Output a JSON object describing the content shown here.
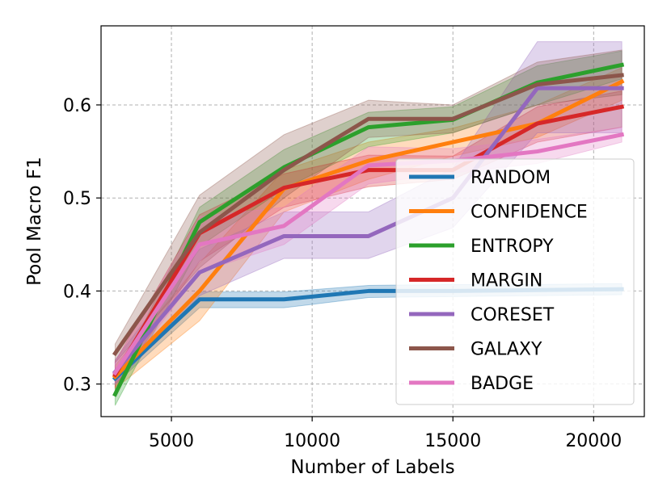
{
  "chart_data": {
    "type": "line",
    "title": "",
    "xlabel": "Number of Labels",
    "ylabel": "Pool Macro F1",
    "xlim": [
      2500,
      21800
    ],
    "ylim": [
      0.265,
      0.685
    ],
    "xticks": [
      5000,
      10000,
      15000,
      20000
    ],
    "yticks": [
      0.3,
      0.4,
      0.5,
      0.6
    ],
    "xtick_labels": [
      "5000",
      "10000",
      "15000",
      "20000"
    ],
    "ytick_labels": [
      "0.3",
      "0.4",
      "0.5",
      "0.6"
    ],
    "grid": true,
    "legend_position": "lower-right",
    "x": [
      3000,
      6000,
      9000,
      12000,
      15000,
      18000,
      21000
    ],
    "series": [
      {
        "name": "RANDOM",
        "color": "#1f77b4",
        "values": [
          0.306,
          0.391,
          0.391,
          0.4,
          0.4,
          0.401,
          0.402
        ],
        "lower": [
          0.3,
          0.382,
          0.382,
          0.393,
          0.394,
          0.395,
          0.396
        ],
        "upper": [
          0.312,
          0.399,
          0.399,
          0.406,
          0.407,
          0.407,
          0.408
        ]
      },
      {
        "name": "CONFIDENCE",
        "color": "#ff7f0e",
        "values": [
          0.308,
          0.4,
          0.51,
          0.54,
          0.56,
          0.58,
          0.625
        ],
        "lower": [
          0.295,
          0.368,
          0.485,
          0.52,
          0.545,
          0.565,
          0.605
        ],
        "upper": [
          0.32,
          0.43,
          0.53,
          0.56,
          0.575,
          0.6,
          0.64
        ]
      },
      {
        "name": "ENTROPY",
        "color": "#2ca02c",
        "values": [
          0.289,
          0.474,
          0.533,
          0.576,
          0.584,
          0.624,
          0.643
        ],
        "lower": [
          0.277,
          0.448,
          0.51,
          0.555,
          0.57,
          0.6,
          0.628
        ],
        "upper": [
          0.301,
          0.49,
          0.552,
          0.592,
          0.598,
          0.642,
          0.658
        ]
      },
      {
        "name": "MARGIN",
        "color": "#d62728",
        "values": [
          0.31,
          0.462,
          0.511,
          0.53,
          0.53,
          0.58,
          0.598
        ],
        "lower": [
          0.296,
          0.432,
          0.49,
          0.512,
          0.52,
          0.56,
          0.576
        ],
        "upper": [
          0.324,
          0.482,
          0.526,
          0.546,
          0.545,
          0.598,
          0.615
        ]
      },
      {
        "name": "CORESET",
        "color": "#9467bd",
        "values": [
          0.313,
          0.42,
          0.459,
          0.459,
          0.5,
          0.618,
          0.618
        ],
        "lower": [
          0.3,
          0.395,
          0.435,
          0.435,
          0.468,
          0.57,
          0.57
        ],
        "upper": [
          0.326,
          0.445,
          0.485,
          0.485,
          0.532,
          0.668,
          0.668
        ]
      },
      {
        "name": "GALAXY",
        "color": "#8c564b",
        "values": [
          0.333,
          0.463,
          0.53,
          0.585,
          0.585,
          0.622,
          0.632
        ],
        "lower": [
          0.323,
          0.425,
          0.5,
          0.565,
          0.57,
          0.6,
          0.611
        ],
        "upper": [
          0.343,
          0.503,
          0.568,
          0.605,
          0.6,
          0.646,
          0.659
        ]
      },
      {
        "name": "BADGE",
        "color": "#e377c2",
        "values": [
          0.312,
          0.45,
          0.47,
          0.535,
          0.54,
          0.55,
          0.568
        ],
        "lower": [
          0.3,
          0.42,
          0.45,
          0.515,
          0.527,
          0.537,
          0.56
        ],
        "upper": [
          0.324,
          0.48,
          0.49,
          0.555,
          0.553,
          0.563,
          0.576
        ]
      }
    ]
  }
}
